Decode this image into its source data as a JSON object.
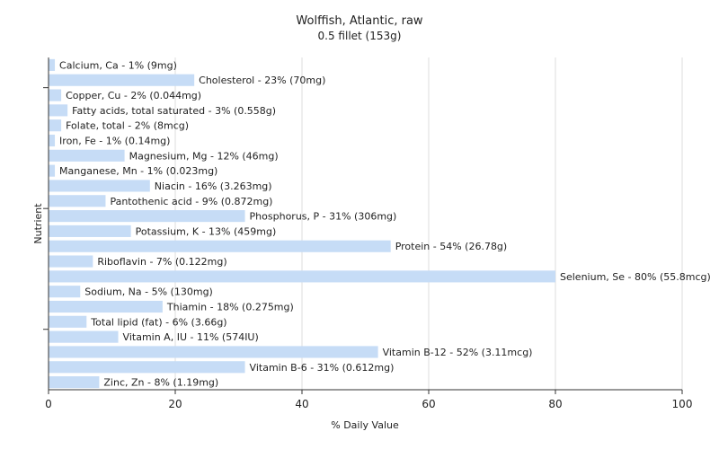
{
  "chart_data": {
    "type": "bar",
    "orientation": "horizontal",
    "title": "Wolffish, Atlantic, raw",
    "subtitle": "0.5 fillet (153g)",
    "xlabel": "% Daily Value",
    "ylabel": "Nutrient",
    "xlim": [
      0,
      100
    ],
    "xticks": [
      0,
      20,
      40,
      60,
      80,
      100
    ],
    "grid": true,
    "bar_color": "#c6dcf6",
    "categories": [
      "Calcium, Ca",
      "Cholesterol",
      "Copper, Cu",
      "Fatty acids, total saturated",
      "Folate, total",
      "Iron, Fe",
      "Magnesium, Mg",
      "Manganese, Mn",
      "Niacin",
      "Pantothenic acid",
      "Phosphorus, P",
      "Potassium, K",
      "Protein",
      "Riboflavin",
      "Selenium, Se",
      "Sodium, Na",
      "Thiamin",
      "Total lipid (fat)",
      "Vitamin A, IU",
      "Vitamin B-12",
      "Vitamin B-6",
      "Zinc, Zn"
    ],
    "values": [
      1,
      23,
      2,
      3,
      2,
      1,
      12,
      1,
      16,
      9,
      31,
      13,
      54,
      7,
      80,
      5,
      18,
      6,
      11,
      52,
      31,
      8
    ],
    "labels": [
      "Calcium, Ca - 1% (9mg)",
      "Cholesterol - 23% (70mg)",
      "Copper, Cu - 2% (0.044mg)",
      "Fatty acids, total saturated - 3% (0.558g)",
      "Folate, total - 2% (8mcg)",
      "Iron, Fe - 1% (0.14mg)",
      "Magnesium, Mg - 12% (46mg)",
      "Manganese, Mn - 1% (0.023mg)",
      "Niacin - 16% (3.263mg)",
      "Pantothenic acid - 9% (0.872mg)",
      "Phosphorus, P - 31% (306mg)",
      "Potassium, K - 13% (459mg)",
      "Protein - 54% (26.78g)",
      "Riboflavin - 7% (0.122mg)",
      "Selenium, Se - 80% (55.8mcg)",
      "Sodium, Na - 5% (130mg)",
      "Thiamin - 18% (0.275mg)",
      "Total lipid (fat) - 6% (3.66g)",
      "Vitamin A, IU - 11% (574IU)",
      "Vitamin B-12 - 52% (3.11mcg)",
      "Vitamin B-6 - 31% (0.612mg)",
      "Zinc, Zn - 8% (1.19mg)"
    ]
  }
}
